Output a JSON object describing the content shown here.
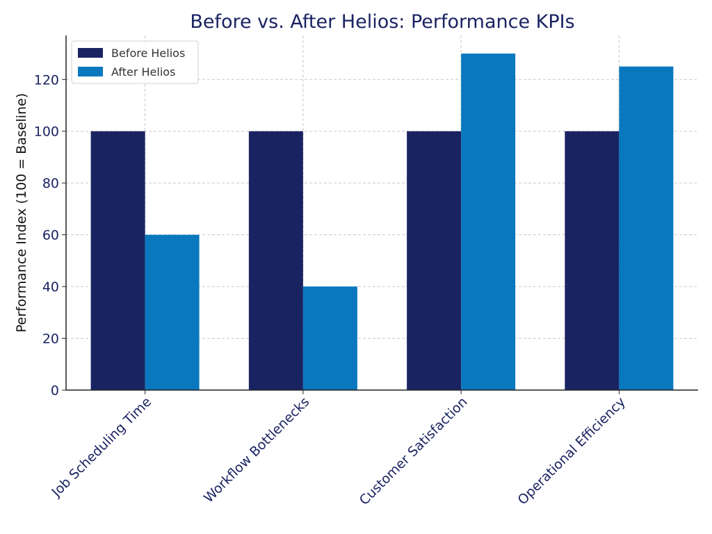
{
  "chart_data": {
    "type": "bar",
    "title": "Before vs. After Helios: Performance KPIs",
    "xlabel": "",
    "ylabel": "Performance Index (100 = Baseline)",
    "categories": [
      "Job Scheduling Time",
      "Workflow Bottlenecks",
      "Customer Satisfaction",
      "Operational Efficiency"
    ],
    "series": [
      {
        "name": "Before Helios",
        "values": [
          100,
          100,
          100,
          100
        ],
        "color": "#1a2362"
      },
      {
        "name": "After Helios",
        "values": [
          60,
          40,
          130,
          125
        ],
        "color": "#0a78be"
      }
    ],
    "ylim": [
      0,
      137
    ],
    "yticks": [
      0,
      20,
      40,
      60,
      80,
      100,
      120
    ],
    "grid": true,
    "legend": "top-left",
    "text_color": "#1a2362"
  }
}
